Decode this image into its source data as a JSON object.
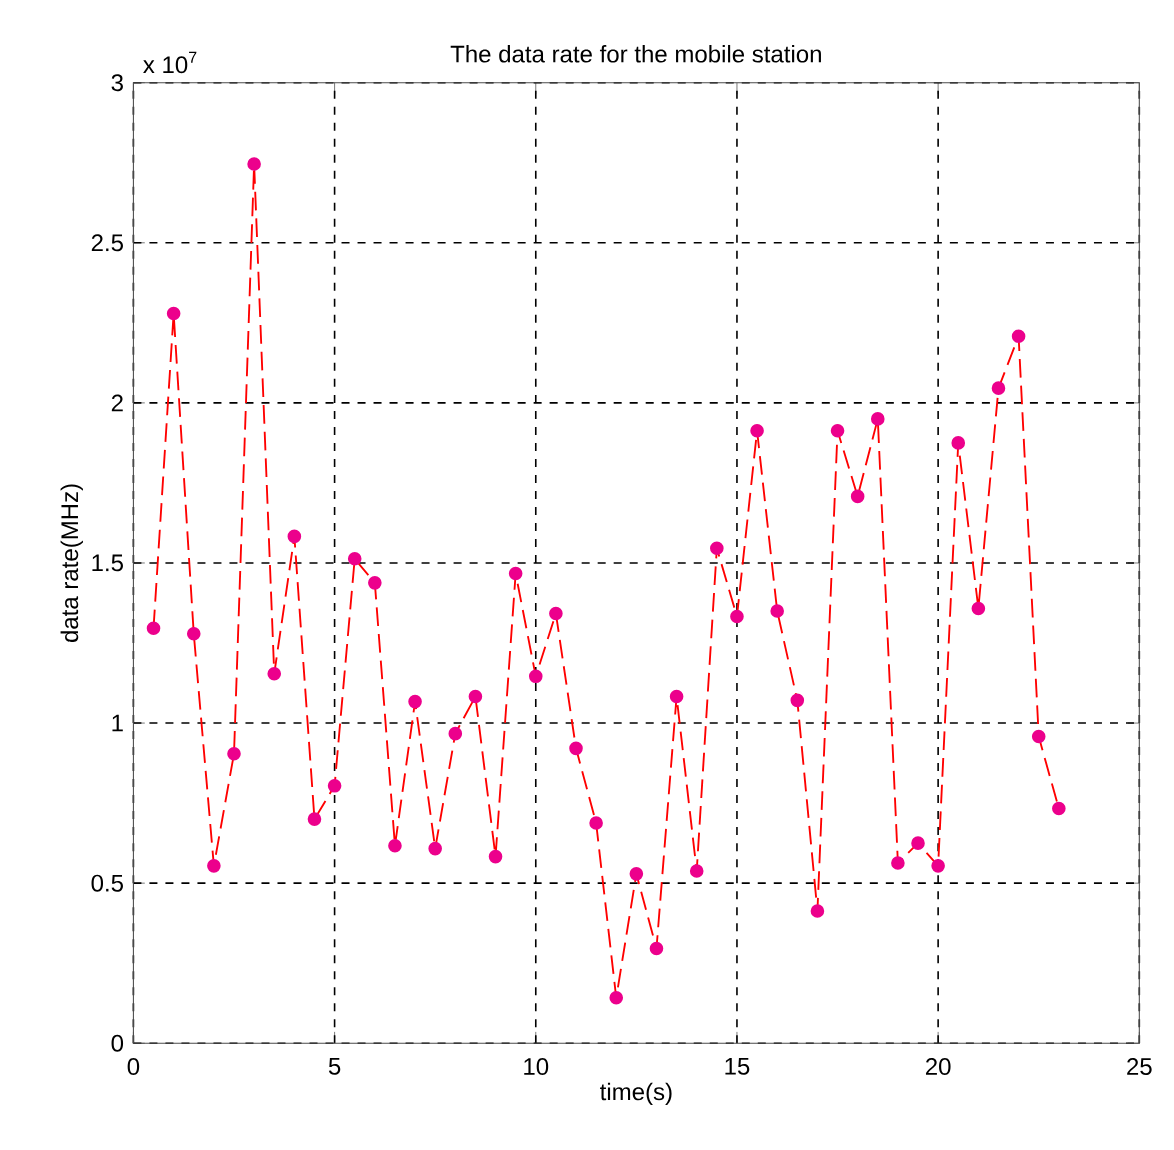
{
  "chart_data": {
    "type": "line",
    "title": "The data rate for the mobile station",
    "xlabel": "time(s)",
    "ylabel": "data rate(MHz)",
    "annotations": [
      "x 10$^{7}$"
    ],
    "x": [
      0.5,
      1,
      1.5,
      2,
      2.5,
      3,
      3.5,
      4,
      4.5,
      5,
      5.5,
      6,
      6.5,
      7,
      7.5,
      8,
      8.5,
      9,
      9.5,
      10,
      10.5,
      11,
      11.5,
      12,
      12.5,
      13,
      13.5,
      14,
      14.5,
      15,
      15.5,
      16,
      16.5,
      17,
      17.5,
      18,
      18.5,
      19,
      19.5,
      20,
      20.5,
      21,
      21.5,
      22,
      22.5,
      23
    ],
    "series": [
      {
        "color": "#ff0000",
        "values": [
          1.296,
          2.279,
          1.279,
          0.554,
          0.904,
          2.746,
          1.154,
          1.583,
          0.7,
          0.804,
          1.513,
          1.438,
          0.617,
          1.067,
          0.608,
          0.967,
          1.083,
          0.583,
          1.467,
          1.146,
          1.342,
          0.921,
          0.688,
          0.142,
          0.529,
          0.296,
          1.083,
          0.538,
          1.546,
          1.333,
          1.913,
          1.35,
          1.071,
          0.413,
          1.913,
          1.708,
          1.95,
          0.563,
          0.625,
          0.554,
          1.875,
          1.358,
          2.046,
          2.208,
          0.958,
          0.733
        ]
      }
    ],
    "xlim": [
      0,
      25
    ],
    "xticks": [
      0,
      5,
      10,
      15,
      20,
      25
    ],
    "ylim": [
      0,
      3
    ],
    "yticks": [
      0,
      0.5,
      1,
      1.5,
      2,
      2.5,
      3
    ],
    "grid": true,
    "marker": "circle",
    "line_style": "dashed"
  }
}
